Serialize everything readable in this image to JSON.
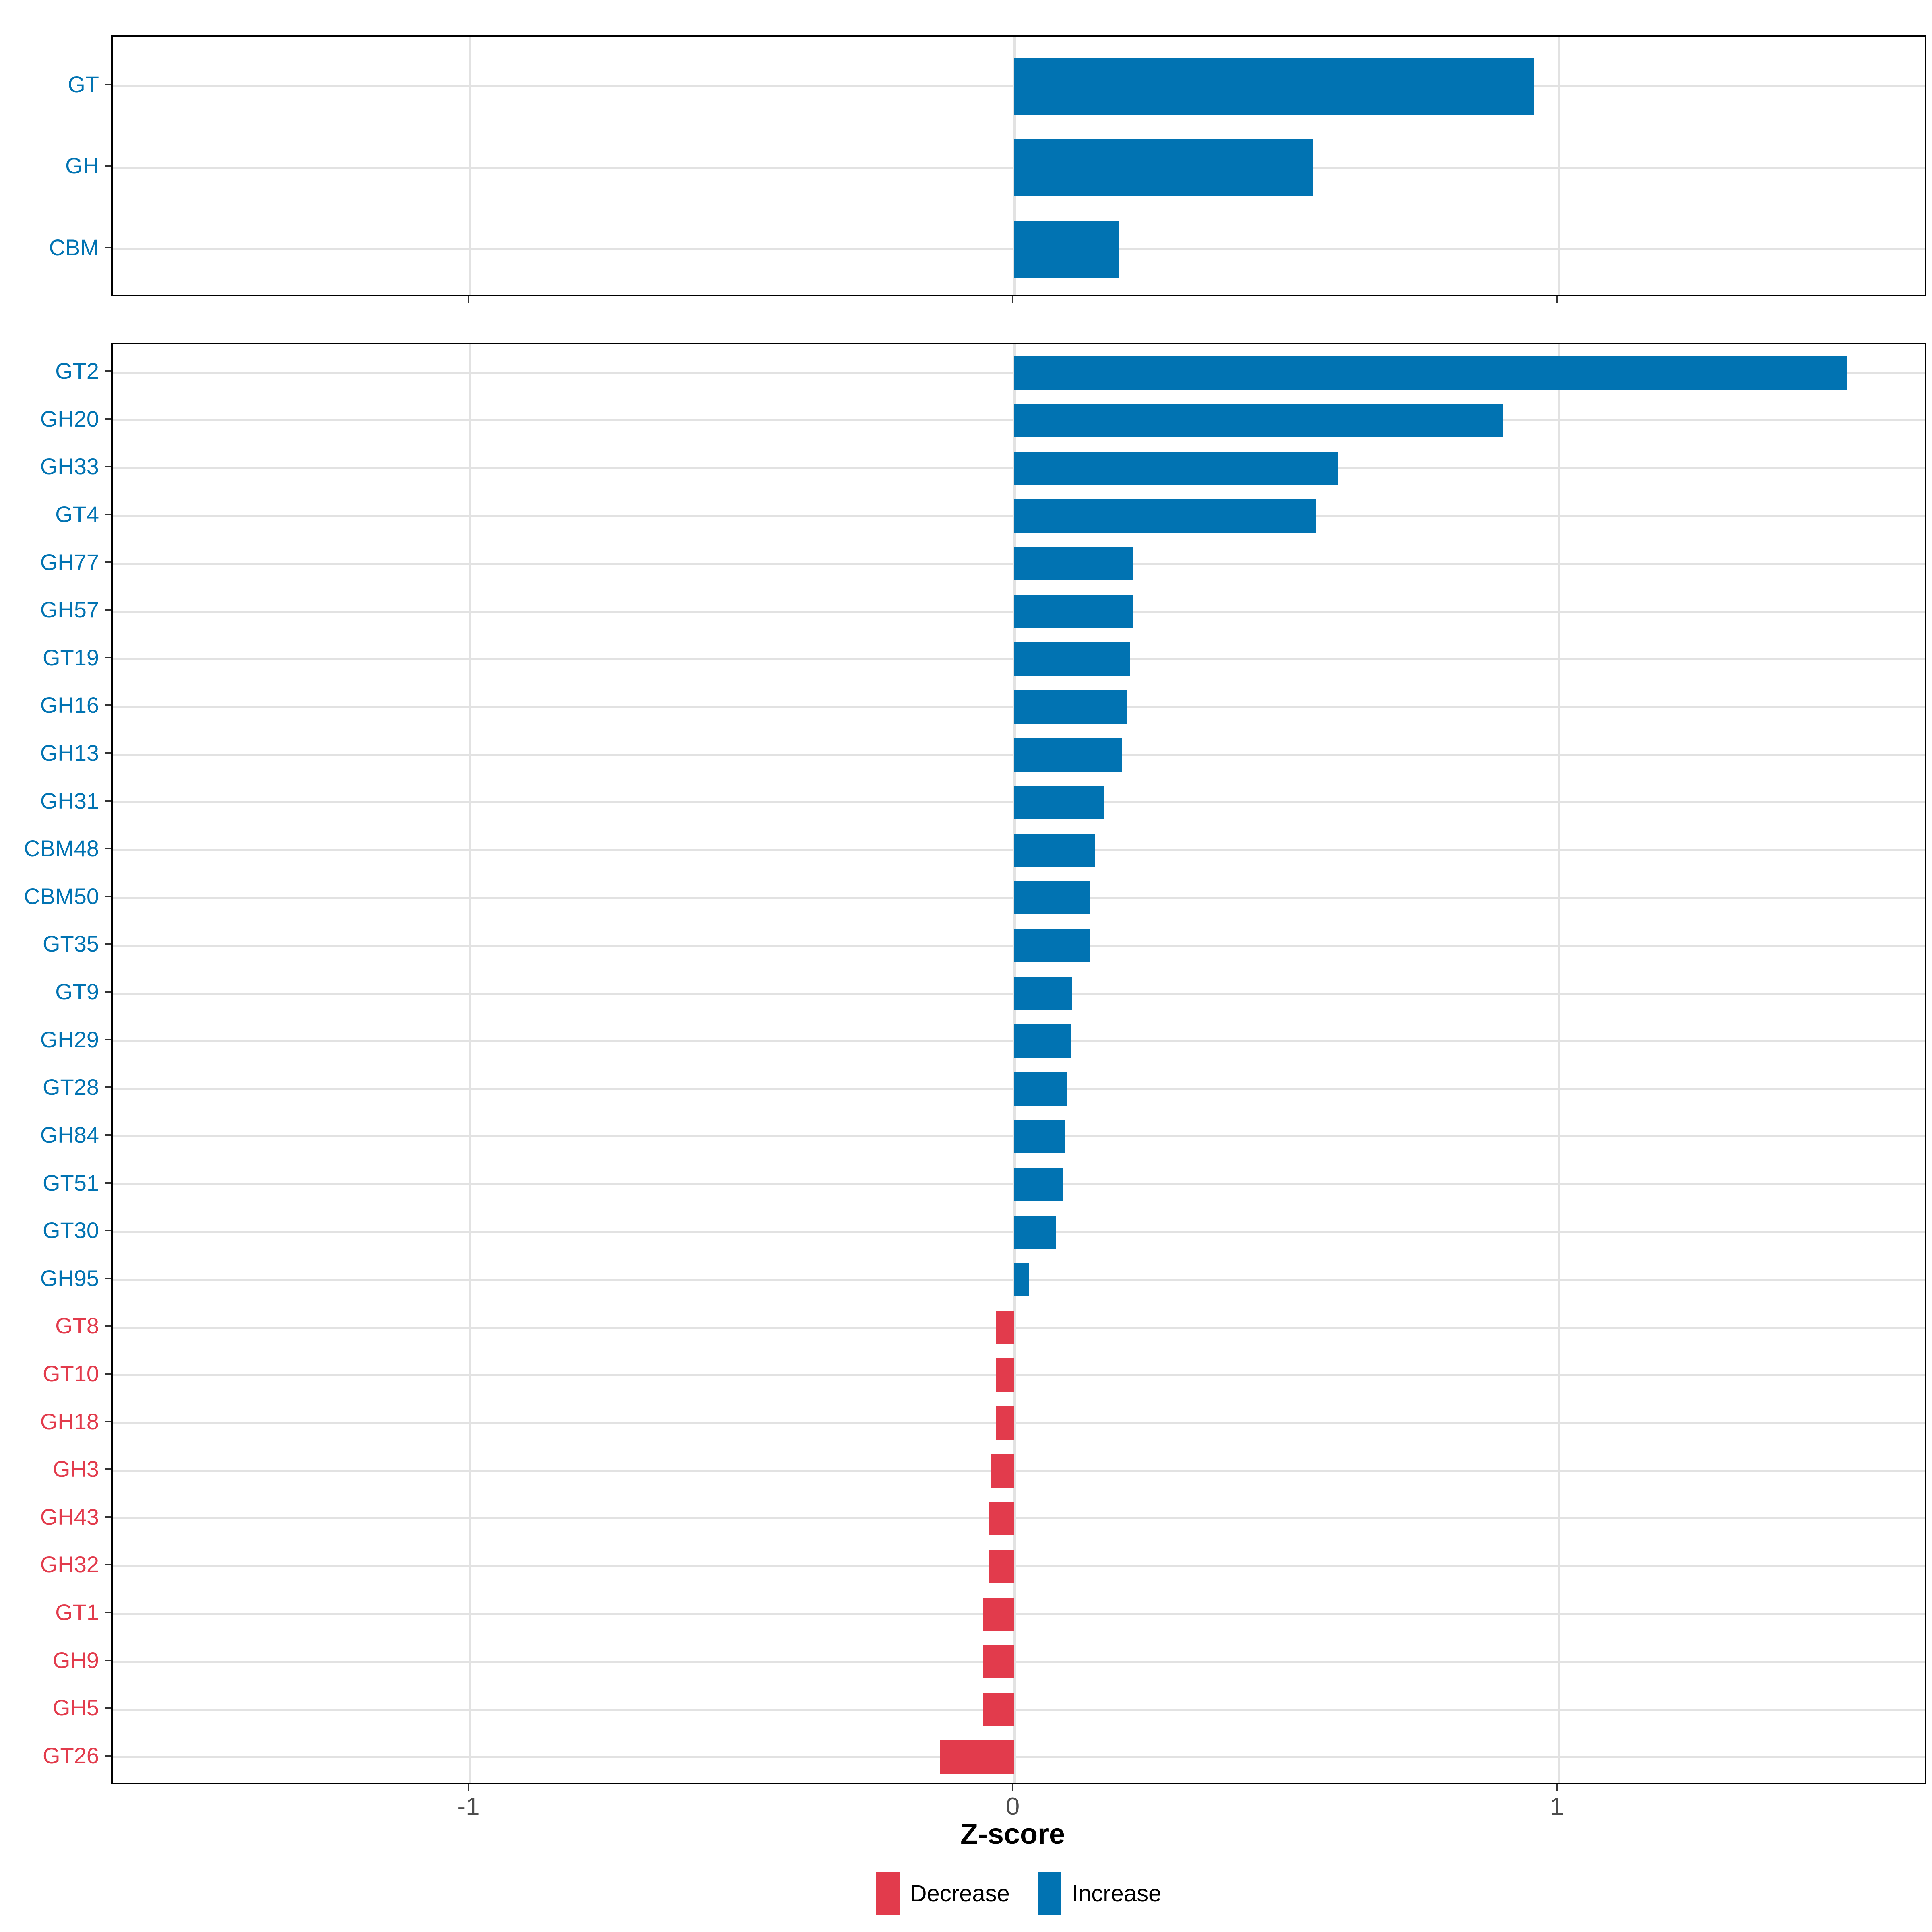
{
  "colors": {
    "increase": "#0173B2",
    "decrease": "#E23B4C",
    "grid": "#E2E2E2",
    "axis_text": "#4D4D4D",
    "axis_title": "#000000",
    "panel_border": "#000000",
    "tick": "#333333",
    "background": "#FFFFFF"
  },
  "axis": {
    "xlabel": "Z-score",
    "tick_values": [
      -1,
      0,
      1
    ],
    "tick_labels": [
      "-1",
      "0",
      "1"
    ],
    "xlim": [
      -1.66,
      1.68
    ],
    "grid": "major vertical at ticks, horizontal at each category row"
  },
  "legend": {
    "position": "bottom",
    "items": [
      {
        "label": "Decrease",
        "color": "#E23B4C",
        "direction": "decrease"
      },
      {
        "label": "Increase",
        "color": "#0173B2",
        "direction": "increase"
      }
    ]
  },
  "chart_data": [
    {
      "type": "bar",
      "orientation": "horizontal",
      "panel": "summary",
      "title": "",
      "xlabel": "Z-score",
      "xlim": [
        -1.66,
        1.68
      ],
      "categories": [
        "GT",
        "GH",
        "CBM"
      ],
      "values": [
        0.955,
        0.548,
        0.192
      ]
    },
    {
      "type": "bar",
      "orientation": "horizontal",
      "panel": "families",
      "title": "",
      "xlabel": "Z-score",
      "xlim": [
        -1.66,
        1.68
      ],
      "categories": [
        "GT2",
        "GH20",
        "GH33",
        "GT4",
        "GH77",
        "GH57",
        "GT19",
        "GH16",
        "GH13",
        "GH31",
        "CBM48",
        "CBM50",
        "GT35",
        "GT9",
        "GH29",
        "GT28",
        "GH84",
        "GT51",
        "GT30",
        "GH95",
        "GT8",
        "GT10",
        "GH18",
        "GH3",
        "GH43",
        "GH32",
        "GT1",
        "GH9",
        "GH5",
        "GT26"
      ],
      "values": [
        1.53,
        0.897,
        0.594,
        0.554,
        0.219,
        0.218,
        0.212,
        0.206,
        0.198,
        0.165,
        0.149,
        0.138,
        0.138,
        0.106,
        0.104,
        0.098,
        0.093,
        0.089,
        0.077,
        0.027,
        -0.034,
        -0.034,
        -0.034,
        -0.044,
        -0.046,
        -0.046,
        -0.057,
        -0.057,
        -0.057,
        -0.137
      ]
    }
  ]
}
